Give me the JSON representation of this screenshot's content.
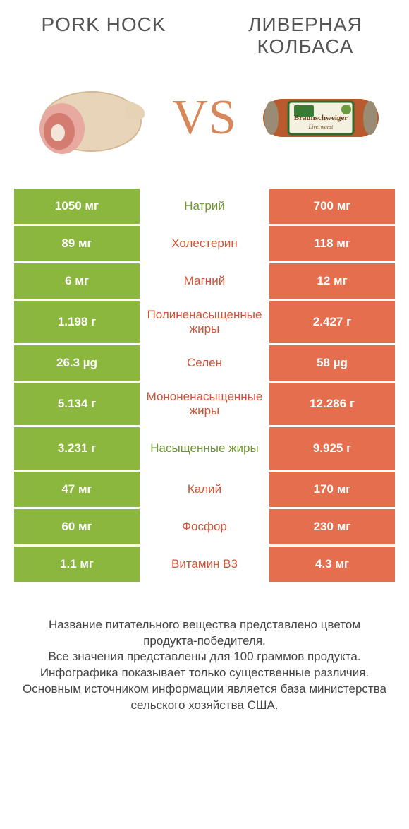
{
  "colors": {
    "green": "#8bb73f",
    "orange": "#e46e4e",
    "mid_green": "#70972e",
    "mid_orange": "#cf5334",
    "white": "#ffffff",
    "gray": "#555555"
  },
  "header": {
    "left": "PORK HOCK",
    "right": "ЛИВЕРНАЯ КОЛБАСА",
    "vs": "VS"
  },
  "rows": [
    {
      "left": "1050 мг",
      "label": "Натрий",
      "right": "700 мг",
      "winner": "left",
      "h": 50
    },
    {
      "left": "89 мг",
      "label": "Холестерин",
      "right": "118 мг",
      "winner": "right",
      "h": 50
    },
    {
      "left": "6 мг",
      "label": "Магний",
      "right": "12 мг",
      "winner": "right",
      "h": 50
    },
    {
      "left": "1.198 г",
      "label": "Полиненасыщенные жиры",
      "right": "2.427 г",
      "winner": "right",
      "h": 60
    },
    {
      "left": "26.3 µg",
      "label": "Селен",
      "right": "58 µg",
      "winner": "right",
      "h": 50
    },
    {
      "left": "5.134 г",
      "label": "Мононенасыщенные жиры",
      "right": "12.286 г",
      "winner": "right",
      "h": 60
    },
    {
      "left": "3.231 г",
      "label": "Насыщенные жиры",
      "right": "9.925 г",
      "winner": "left",
      "h": 60
    },
    {
      "left": "47 мг",
      "label": "Калий",
      "right": "170 мг",
      "winner": "right",
      "h": 50
    },
    {
      "left": "60 мг",
      "label": "Фосфор",
      "right": "230 мг",
      "winner": "right",
      "h": 50
    },
    {
      "left": "1.1 мг",
      "label": "Витамин B3",
      "right": "4.3 мг",
      "winner": "right",
      "h": 50
    }
  ],
  "footer": "Название питательного вещества представлено цветом продукта-победителя.\nВсе значения представлены для 100 граммов продукта.\nИнфографика показывает только существенные различия.\nОсновным источником информации является база министерства сельского хозяйства США."
}
